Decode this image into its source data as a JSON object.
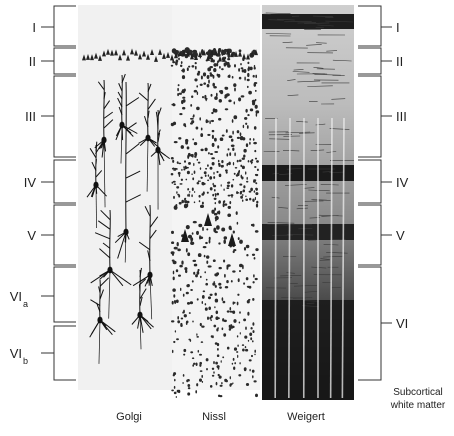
{
  "left_layers": [
    {
      "name": "I",
      "sub": ""
    },
    {
      "name": "II",
      "sub": ""
    },
    {
      "name": "III",
      "sub": ""
    },
    {
      "name": "IV",
      "sub": ""
    },
    {
      "name": "V",
      "sub": ""
    },
    {
      "name": "VI",
      "sub": "a"
    },
    {
      "name": "VI",
      "sub": "b"
    }
  ],
  "right_layers": [
    {
      "name": "I"
    },
    {
      "name": "II"
    },
    {
      "name": "III"
    },
    {
      "name": "IV"
    },
    {
      "name": "V"
    },
    {
      "name": "VI"
    }
  ],
  "stain_columns": [
    "Golgi",
    "Nissl",
    "Weigert"
  ],
  "right_note_line1": "Subcortical",
  "right_note_line2": "white matter"
}
